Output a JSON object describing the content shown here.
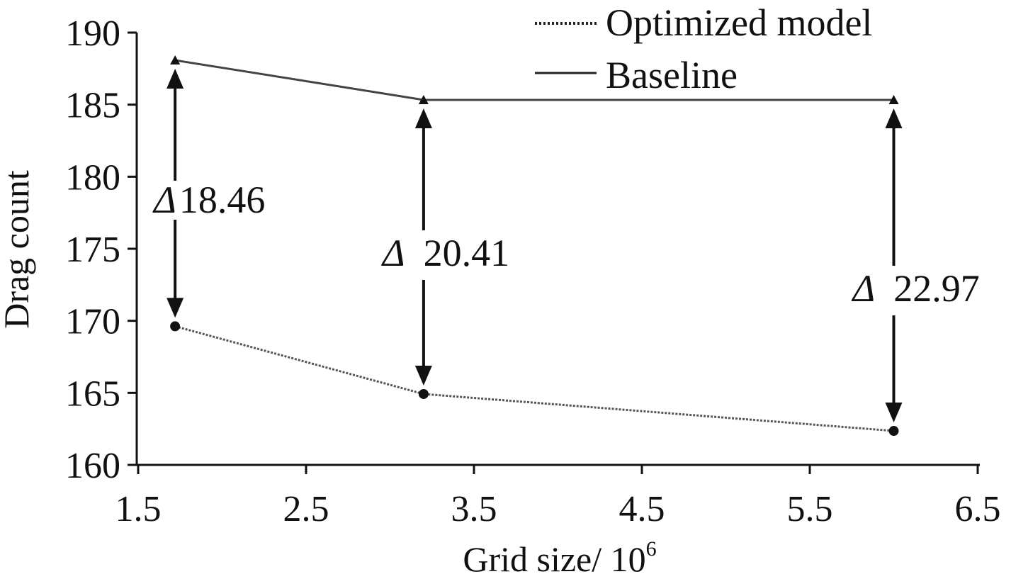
{
  "chart_data": {
    "type": "line",
    "title": "",
    "xlabel": "Grid size/ 10",
    "xlabel_superscript": "6",
    "ylabel": "Drag count",
    "xlim": [
      1.5,
      6.5
    ],
    "ylim": [
      160,
      190
    ],
    "xticks": [
      "1.5",
      "2.5",
      "3.5",
      "4.5",
      "5.5",
      "6.5"
    ],
    "yticks": [
      "160",
      "165",
      "170",
      "175",
      "180",
      "185",
      "190"
    ],
    "grid": false,
    "legend_position": "top-right",
    "x": [
      1.72,
      3.2,
      6.0
    ],
    "series": [
      {
        "name": "Optimized model",
        "style": "dotted",
        "marker": "circle",
        "color": "#555555",
        "values": [
          169.62,
          164.92,
          162.36
        ]
      },
      {
        "name": "Baseline",
        "style": "solid",
        "marker": "triangle",
        "color": "#444444",
        "values": [
          188.08,
          185.33,
          185.33
        ]
      }
    ],
    "annotations": [
      {
        "symbol": "Δ",
        "text": "18.46",
        "x": 1.72
      },
      {
        "symbol": "Δ",
        "text": "20.41",
        "x": 3.2
      },
      {
        "symbol": "Δ",
        "text": "22.97",
        "x": 6.0
      }
    ]
  }
}
